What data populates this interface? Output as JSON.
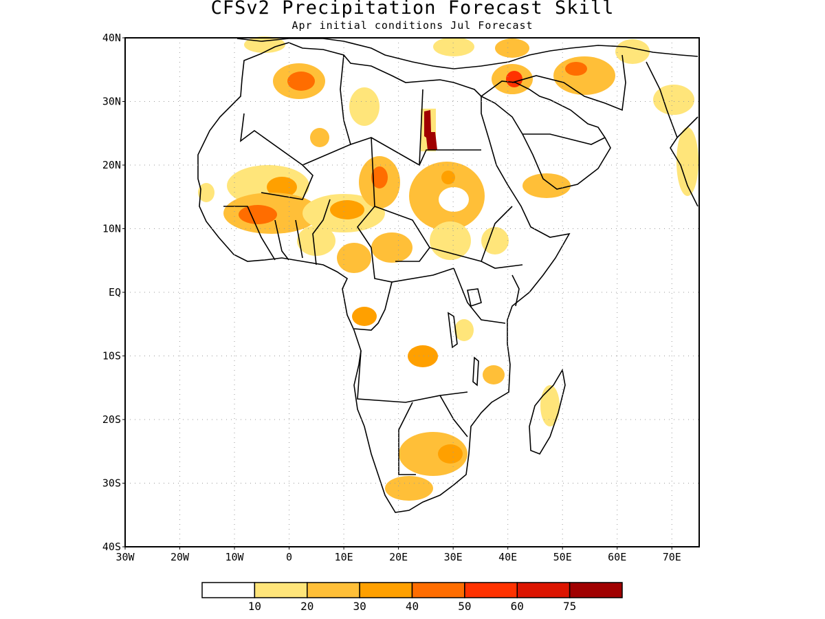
{
  "title": "CFSv2 Precipitation Forecast Skill",
  "subtitle": "Apr initial conditions  Jul Forecast",
  "map": {
    "lon_range": [
      -30,
      75
    ],
    "lat_range": [
      -40,
      40
    ],
    "grid": "dotted",
    "lat_labels": [
      "40N",
      "30N",
      "20N",
      "10N",
      "EQ",
      "10S",
      "20S",
      "30S",
      "40S"
    ],
    "lon_labels": [
      "30W",
      "20W",
      "10W",
      "0",
      "10E",
      "20E",
      "30E",
      "40E",
      "50E",
      "60E",
      "70E"
    ]
  },
  "colorbar": {
    "colors": [
      "#ffffff",
      "#ffe57a",
      "#ffbf38",
      "#ffa000",
      "#ff6d00",
      "#ff3200",
      "#dc1400",
      "#a00000"
    ],
    "labels": [
      "10",
      "20",
      "30",
      "40",
      "50",
      "60",
      "75"
    ]
  }
}
